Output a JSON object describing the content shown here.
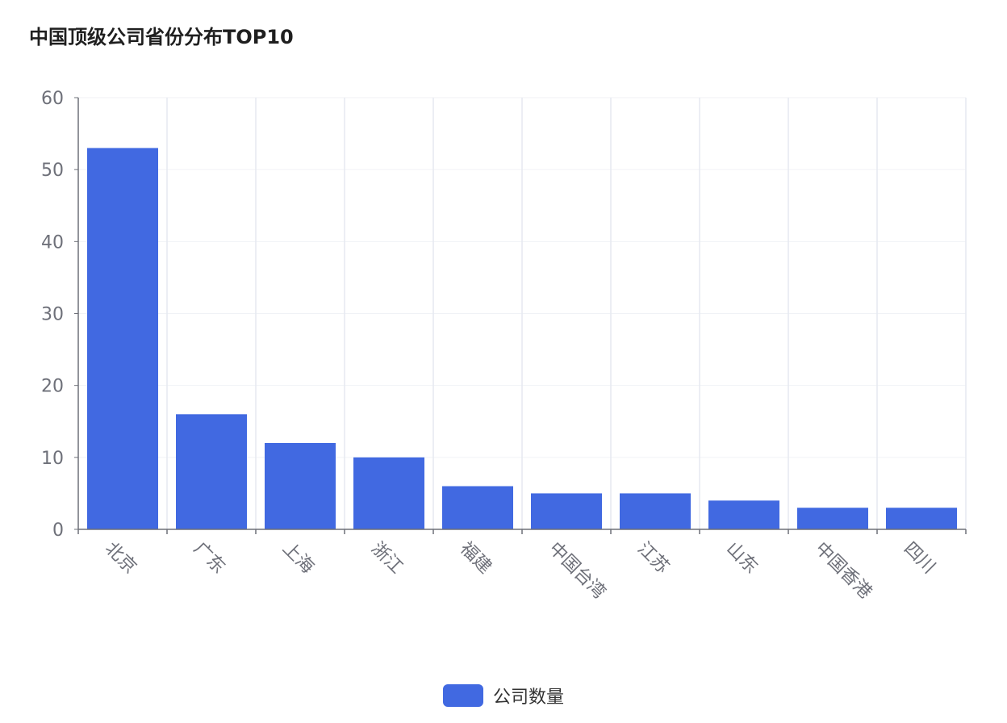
{
  "chart_data": {
    "type": "bar",
    "title": "中国顶级公司省份分布TOP10",
    "categories": [
      "北京",
      "广东",
      "上海",
      "浙江",
      "福建",
      "中国台湾",
      "江苏",
      "山东",
      "中国香港",
      "四川"
    ],
    "series": [
      {
        "name": "公司数量",
        "values": [
          53,
          16,
          12,
          10,
          6,
          5,
          5,
          4,
          3,
          3
        ]
      }
    ],
    "ylim": [
      0,
      60
    ],
    "yticks": [
      0,
      10,
      20,
      30,
      40,
      50,
      60
    ],
    "xlabel": "",
    "ylabel": "",
    "grid": true,
    "legend_position": "bottom-center",
    "x_tick_rotation": 45
  },
  "colors": {
    "bar": "#4169E1",
    "axis": "#6e7079",
    "grid": "#e6e9f0",
    "tick_label": "#6e7079"
  }
}
